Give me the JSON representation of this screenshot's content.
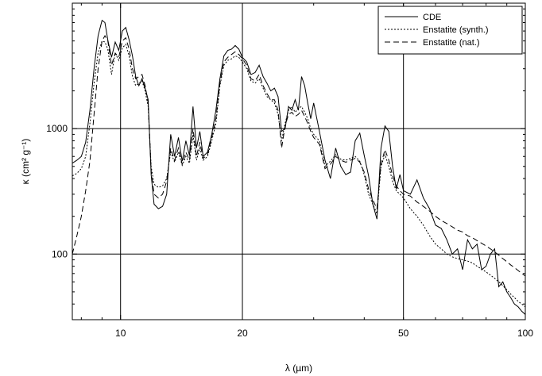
{
  "chart_data": {
    "type": "line",
    "xlabel": "λ (µm)",
    "ylabel": "κ (cm² g⁻¹)",
    "xscale": "log",
    "yscale": "log",
    "xlim": [
      7.6,
      100
    ],
    "ylim": [
      30,
      10000
    ],
    "xticks": [
      10,
      20,
      50,
      100
    ],
    "yticks": [
      100,
      1000
    ],
    "grid": "major",
    "legend": "top-right",
    "series": [
      {
        "name": "CDE",
        "style": "solid",
        "x": [
          7.6,
          7.8,
          8.0,
          8.2,
          8.4,
          8.6,
          8.8,
          9.0,
          9.15,
          9.3,
          9.5,
          9.7,
          9.9,
          10.1,
          10.3,
          10.5,
          10.7,
          10.9,
          11.1,
          11.3,
          11.5,
          11.7,
          11.9,
          12.1,
          12.4,
          12.7,
          13.0,
          13.3,
          13.6,
          13.9,
          14.2,
          14.5,
          14.8,
          15.1,
          15.4,
          15.7,
          16.0,
          16.4,
          16.8,
          17.2,
          17.6,
          18.0,
          18.4,
          18.8,
          19.2,
          19.6,
          20.0,
          20.5,
          21.0,
          21.5,
          22.0,
          22.5,
          23.0,
          23.5,
          24.0,
          24.5,
          25.0,
          25.5,
          26.0,
          26.5,
          27.0,
          27.5,
          28.0,
          28.5,
          29.0,
          29.5,
          30.0,
          31.0,
          32.0,
          33.0,
          34.0,
          35.0,
          36.0,
          37.0,
          38.0,
          39.0,
          40.0,
          41.0,
          42.0,
          43.0,
          44.0,
          45.0,
          46.0,
          47.0,
          48.0,
          49.0,
          50.0,
          52.0,
          54.0,
          56.0,
          58.0,
          60.0,
          62.0,
          64.0,
          66.0,
          68.0,
          70.0,
          72.0,
          74.0,
          76.0,
          78.0,
          80.0,
          82.0,
          84.0,
          86.0,
          88.0,
          90.0,
          92.0,
          94.0,
          96.0,
          98.0,
          100.0
        ],
        "y": [
          530,
          560,
          600,
          780,
          1400,
          3000,
          5500,
          7300,
          7000,
          5100,
          3700,
          4900,
          4200,
          6000,
          6400,
          5100,
          3800,
          2600,
          2200,
          2500,
          2100,
          1700,
          430,
          250,
          230,
          240,
          300,
          900,
          600,
          850,
          550,
          800,
          610,
          1500,
          700,
          950,
          600,
          650,
          900,
          1400,
          2500,
          3800,
          4200,
          4300,
          4600,
          4300,
          3700,
          3400,
          2700,
          2800,
          3200,
          2600,
          2300,
          2000,
          2100,
          1800,
          950,
          1000,
          1500,
          1400,
          1700,
          1400,
          2600,
          2200,
          1600,
          1200,
          1600,
          950,
          560,
          400,
          700,
          500,
          430,
          450,
          800,
          920,
          610,
          420,
          250,
          190,
          700,
          1050,
          950,
          500,
          330,
          430,
          320,
          300,
          390,
          280,
          230,
          170,
          160,
          130,
          100,
          110,
          75,
          130,
          110,
          120,
          75,
          80,
          100,
          110,
          55,
          60,
          50,
          45,
          40,
          38,
          35,
          33
        ]
      },
      {
        "name": "Enstatite (synth.)",
        "style": "dotted",
        "x": [
          7.6,
          7.8,
          8.0,
          8.2,
          8.4,
          8.6,
          8.8,
          9.0,
          9.15,
          9.3,
          9.5,
          9.7,
          9.9,
          10.1,
          10.3,
          10.5,
          10.7,
          10.9,
          11.1,
          11.3,
          11.5,
          11.7,
          11.9,
          12.1,
          12.4,
          12.7,
          13.0,
          13.3,
          13.6,
          13.9,
          14.2,
          14.5,
          14.8,
          15.1,
          15.4,
          15.7,
          16.0,
          16.4,
          16.8,
          17.2,
          17.6,
          18.0,
          18.4,
          18.8,
          19.2,
          19.6,
          20.0,
          20.5,
          21.0,
          21.5,
          22.0,
          22.5,
          23.0,
          23.5,
          24.0,
          24.5,
          25.0,
          25.5,
          26.0,
          26.5,
          27.0,
          27.5,
          28.0,
          28.5,
          29.0,
          29.5,
          30.0,
          31.0,
          32.0,
          33.0,
          34.0,
          35.0,
          36.0,
          37.0,
          38.0,
          39.0,
          40.0,
          41.0,
          42.0,
          43.0,
          44.0,
          45.0,
          46.0,
          47.0,
          48.0,
          49.0,
          50.0,
          52.0,
          54.0,
          56.0,
          58.0,
          60.0,
          62.0,
          64.0,
          66.0,
          68.0,
          70.0,
          72.0,
          74.0,
          76.0,
          78.0,
          80.0,
          82.0,
          84.0,
          86.0,
          88.0,
          90.0,
          92.0,
          94.0,
          96.0,
          98.0,
          100.0
        ],
        "y": [
          420,
          440,
          480,
          600,
          1100,
          2300,
          4000,
          5000,
          4900,
          4300,
          2700,
          4000,
          3500,
          4400,
          4700,
          3800,
          2600,
          2200,
          2300,
          2400,
          2000,
          1500,
          500,
          360,
          340,
          350,
          400,
          650,
          540,
          650,
          510,
          600,
          530,
          900,
          560,
          700,
          560,
          600,
          800,
          1100,
          2200,
          3200,
          3500,
          3600,
          3800,
          3700,
          3400,
          3000,
          2400,
          2300,
          2500,
          2100,
          1800,
          1700,
          1600,
          1300,
          800,
          1100,
          1400,
          1500,
          1350,
          1450,
          1500,
          1350,
          1200,
          1000,
          900,
          800,
          500,
          550,
          620,
          570,
          560,
          580,
          600,
          550,
          430,
          300,
          250,
          210,
          500,
          620,
          500,
          380,
          320,
          300,
          280,
          230,
          200,
          170,
          140,
          120,
          110,
          100,
          95,
          92,
          90,
          88,
          85,
          80,
          76,
          72,
          68,
          64,
          60,
          56,
          52,
          48,
          45,
          42,
          40,
          38
        ]
      },
      {
        "name": "Enstatite (nat.)",
        "style": "dashed",
        "x": [
          7.6,
          7.8,
          8.0,
          8.2,
          8.4,
          8.6,
          8.8,
          9.0,
          9.15,
          9.3,
          9.5,
          9.7,
          9.9,
          10.1,
          10.3,
          10.5,
          10.7,
          10.9,
          11.1,
          11.3,
          11.5,
          11.7,
          11.9,
          12.1,
          12.4,
          12.7,
          13.0,
          13.3,
          13.6,
          13.9,
          14.2,
          14.5,
          14.8,
          15.1,
          15.4,
          15.7,
          16.0,
          16.4,
          16.8,
          17.2,
          17.6,
          18.0,
          18.4,
          18.8,
          19.2,
          19.6,
          20.0,
          20.5,
          21.0,
          21.5,
          22.0,
          22.5,
          23.0,
          23.5,
          24.0,
          24.5,
          25.0,
          25.5,
          26.0,
          26.5,
          27.0,
          27.5,
          28.0,
          28.5,
          29.0,
          29.5,
          30.0,
          31.0,
          32.0,
          33.0,
          34.0,
          35.0,
          36.0,
          37.0,
          38.0,
          39.0,
          40.0,
          41.0,
          42.0,
          43.0,
          44.0,
          45.0,
          46.0,
          47.0,
          48.0,
          49.0,
          50.0,
          52.0,
          54.0,
          56.0,
          58.0,
          60.0,
          62.0,
          64.0,
          66.0,
          68.0,
          70.0,
          72.0,
          74.0,
          76.0,
          78.0,
          80.0,
          82.0,
          84.0,
          86.0,
          88.0,
          90.0,
          92.0,
          94.0,
          96.0,
          98.0,
          100.0
        ],
        "y": [
          100,
          140,
          200,
          320,
          550,
          1300,
          3000,
          5000,
          5500,
          5000,
          3200,
          4000,
          3700,
          5000,
          5300,
          4300,
          3000,
          2500,
          2600,
          2700,
          2200,
          1600,
          460,
          300,
          280,
          300,
          380,
          700,
          560,
          700,
          520,
          650,
          560,
          1000,
          600,
          780,
          580,
          620,
          850,
          1200,
          2300,
          3400,
          3700,
          3900,
          4100,
          3900,
          3600,
          3200,
          2500,
          2400,
          2700,
          2200,
          1900,
          1700,
          1700,
          1400,
          700,
          1050,
          1300,
          1350,
          1250,
          1300,
          1400,
          1250,
          1100,
          950,
          850,
          750,
          480,
          520,
          600,
          560,
          540,
          560,
          580,
          540,
          450,
          330,
          270,
          230,
          520,
          680,
          560,
          420,
          350,
          320,
          300,
          290,
          260,
          240,
          220,
          200,
          185,
          175,
          165,
          155,
          150,
          140,
          135,
          128,
          122,
          116,
          110,
          104,
          98,
          92,
          87,
          82,
          78,
          74,
          70,
          67
        ]
      }
    ]
  }
}
